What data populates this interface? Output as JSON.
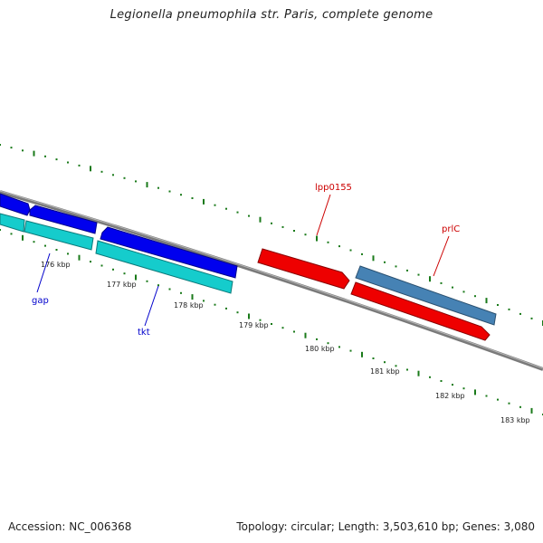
{
  "title": "Legionella pneumophila str. Paris, complete genome",
  "footer": {
    "accession": "Accession: NC_006368",
    "summary": "Topology: circular; Length: 3,503,610 bp; Genes: 3,080"
  },
  "colors": {
    "backbone": "#808080",
    "ticks": "#1a7a1a",
    "gene_blue": "#0000ee",
    "gene_cyan": "#15cccc",
    "gene_red": "#ee0000",
    "gene_steel": "#4682b4",
    "label_blue": "#0000cc",
    "label_red": "#cc0000"
  },
  "scale": {
    "unit": "kbp",
    "labels": [
      "176 kbp",
      "177 kbp",
      "178 kbp",
      "179 kbp",
      "180 kbp",
      "181 kbp",
      "182 kbp",
      "183 kbp"
    ]
  },
  "gene_labels": {
    "gap": "gap",
    "tkt": "tkt",
    "lpp0155": "lpp0155",
    "prlC": "prlC"
  }
}
